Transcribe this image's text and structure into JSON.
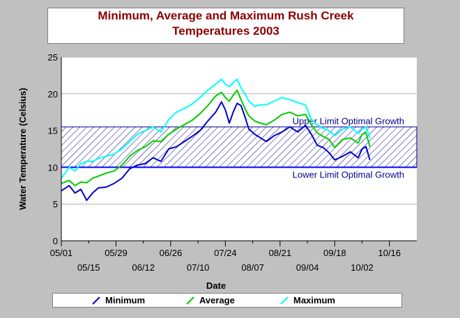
{
  "chart_data": {
    "type": "line",
    "title": "Minimum, Average and Maximum Rush Creek",
    "subtitle": "Temperatures 2003",
    "xlabel": "Date",
    "ylabel": "Water Temperature (Celsius)",
    "ylim": [
      0,
      25
    ],
    "yticks": [
      "0",
      "5",
      "10",
      "15",
      "20",
      "25"
    ],
    "xlim": [
      "05/01",
      "10/30"
    ],
    "xticks_top_row": [
      "05/01",
      "05/29",
      "06/26",
      "07/24",
      "08/21",
      "09/18",
      "10/16"
    ],
    "xticks_bottom_row": [
      "05/15",
      "06/12",
      "07/10",
      "08/07",
      "09/04",
      "10/02"
    ],
    "grid": "horizontal",
    "legend_placement": "bottom",
    "optimal_band": {
      "upper": 15.5,
      "lower": 10,
      "upper_label": "Upper Limit Optimal Growth",
      "lower_label": "Lower Limit Optimal Growth",
      "color": "#00008b"
    },
    "series": [
      {
        "name": "Minimum",
        "color": "#0000cc",
        "x": [
          "05/01",
          "05/05",
          "05/08",
          "05/11",
          "05/14",
          "05/17",
          "05/20",
          "05/24",
          "05/28",
          "06/01",
          "06/05",
          "06/09",
          "06/13",
          "06/17",
          "06/21",
          "06/25",
          "06/29",
          "07/03",
          "07/07",
          "07/11",
          "07/15",
          "07/19",
          "07/22",
          "07/24",
          "07/26",
          "07/28",
          "07/30",
          "08/01",
          "08/03",
          "08/05",
          "08/08",
          "08/11",
          "08/14",
          "08/18",
          "08/22",
          "08/26",
          "08/30",
          "09/03",
          "09/06",
          "09/09",
          "09/12",
          "09/15",
          "09/18",
          "09/22",
          "09/26",
          "09/30",
          "10/02",
          "10/04",
          "10/06"
        ],
        "values": [
          6.8,
          7.5,
          6.5,
          7.0,
          5.5,
          6.5,
          7.2,
          7.3,
          7.8,
          8.5,
          9.8,
          10.3,
          10.5,
          11.3,
          10.8,
          12.5,
          12.8,
          13.5,
          14.2,
          15.0,
          16.3,
          17.5,
          18.9,
          17.8,
          16.0,
          17.5,
          18.7,
          18.4,
          16.9,
          15.2,
          14.5,
          14.0,
          13.5,
          14.3,
          14.8,
          15.5,
          14.8,
          15.7,
          14.5,
          13.0,
          12.7,
          12.0,
          11.0,
          11.5,
          12.1,
          11.3,
          12.5,
          12.8,
          11.0
        ]
      },
      {
        "name": "Average",
        "color": "#00cc00",
        "x": [
          "05/01",
          "05/05",
          "05/08",
          "05/11",
          "05/14",
          "05/17",
          "05/20",
          "05/24",
          "05/28",
          "06/01",
          "06/05",
          "06/09",
          "06/13",
          "06/17",
          "06/21",
          "06/25",
          "06/29",
          "07/03",
          "07/07",
          "07/11",
          "07/15",
          "07/19",
          "07/22",
          "07/24",
          "07/26",
          "07/28",
          "07/30",
          "08/01",
          "08/03",
          "08/05",
          "08/08",
          "08/11",
          "08/14",
          "08/18",
          "08/22",
          "08/26",
          "08/30",
          "09/03",
          "09/06",
          "09/09",
          "09/12",
          "09/15",
          "09/18",
          "09/22",
          "09/26",
          "09/30",
          "10/02",
          "10/04",
          "10/06"
        ],
        "values": [
          7.8,
          8.2,
          7.5,
          8.0,
          7.9,
          8.5,
          8.8,
          9.2,
          9.5,
          10.3,
          11.5,
          12.3,
          12.8,
          13.6,
          13.5,
          14.5,
          15.2,
          15.8,
          16.4,
          17.3,
          18.4,
          19.7,
          20.2,
          19.5,
          19.0,
          19.8,
          20.5,
          19.2,
          18.0,
          17.0,
          16.3,
          16.0,
          15.8,
          16.4,
          17.2,
          17.5,
          17.0,
          17.2,
          15.8,
          14.7,
          14.2,
          13.8,
          12.7,
          13.8,
          14.0,
          13.3,
          14.5,
          14.7,
          12.8
        ]
      },
      {
        "name": "Maximum",
        "color": "#00ffff",
        "x": [
          "05/01",
          "05/05",
          "05/08",
          "05/11",
          "05/14",
          "05/17",
          "05/20",
          "05/24",
          "05/28",
          "06/01",
          "06/05",
          "06/09",
          "06/13",
          "06/17",
          "06/21",
          "06/25",
          "06/29",
          "07/03",
          "07/07",
          "07/11",
          "07/15",
          "07/19",
          "07/22",
          "07/24",
          "07/26",
          "07/28",
          "07/30",
          "08/01",
          "08/03",
          "08/05",
          "08/08",
          "08/11",
          "08/14",
          "08/18",
          "08/22",
          "08/26",
          "08/30",
          "09/03",
          "09/06",
          "09/09",
          "09/12",
          "09/15",
          "09/18",
          "09/22",
          "09/26",
          "09/30",
          "10/02",
          "10/04",
          "10/06"
        ],
        "values": [
          8.5,
          10.0,
          9.5,
          10.5,
          10.8,
          10.8,
          11.2,
          11.5,
          11.8,
          12.5,
          13.5,
          14.5,
          15.0,
          15.5,
          14.8,
          16.5,
          17.5,
          18.0,
          18.6,
          19.5,
          20.5,
          21.3,
          22.0,
          21.3,
          21.0,
          21.5,
          22.0,
          20.8,
          20.0,
          19.0,
          18.3,
          18.5,
          18.5,
          19.0,
          19.5,
          19.2,
          18.8,
          18.5,
          16.5,
          15.8,
          15.3,
          15.0,
          14.3,
          15.2,
          15.5,
          14.6,
          15.2,
          15.5,
          14.0
        ]
      }
    ]
  }
}
